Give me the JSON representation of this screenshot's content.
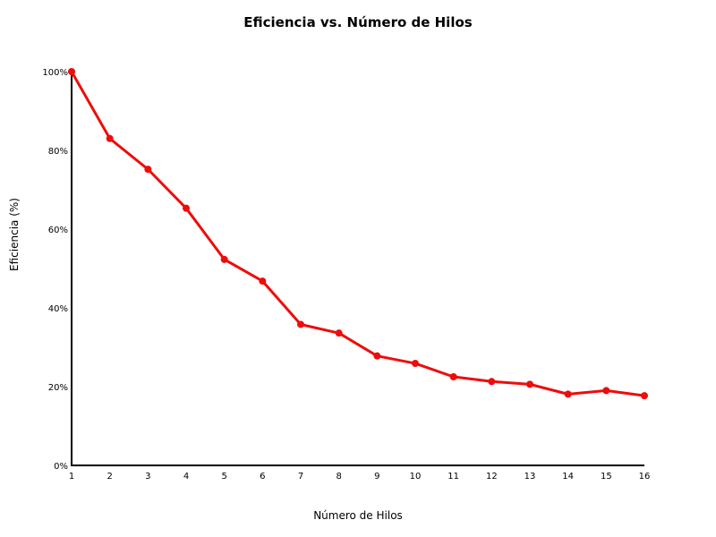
{
  "chart_data": {
    "type": "line",
    "title": "Eficiencia vs. Número de Hilos",
    "xlabel": "Número de Hilos",
    "ylabel": "Eficiencia (%)",
    "x": [
      1,
      2,
      3,
      4,
      5,
      6,
      7,
      8,
      9,
      10,
      11,
      12,
      13,
      14,
      15,
      16
    ],
    "x_tick_labels": [
      "1",
      "2",
      "3",
      "4",
      "5",
      "6",
      "7",
      "8",
      "9",
      "10",
      "11",
      "12",
      "13",
      "14",
      "15",
      "16"
    ],
    "xlim": [
      1,
      16
    ],
    "ylim": [
      0,
      100
    ],
    "y_ticks": [
      0,
      20,
      40,
      60,
      80,
      100
    ],
    "y_tick_labels": [
      "0%",
      "20%",
      "40%",
      "60%",
      "80%",
      "100%"
    ],
    "series": [
      {
        "values": [
          100,
          83,
          75.2,
          65.3,
          52.3,
          46.8,
          35.8,
          33.6,
          27.8,
          25.9,
          22.5,
          21.3,
          20.6,
          18.1,
          19.0,
          17.7
        ],
        "color": "#ee0c0c"
      }
    ],
    "grid": false,
    "legend": "none"
  }
}
